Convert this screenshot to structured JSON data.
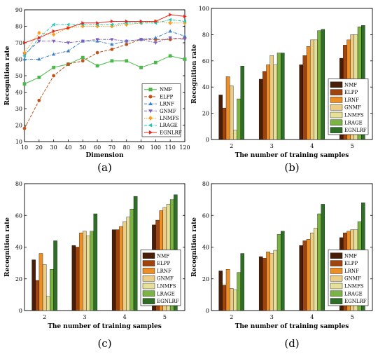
{
  "chart_data": [
    {
      "panel": "(a)",
      "type": "line",
      "xlabel": "Dimension",
      "ylabel": "Recognition rate",
      "xlim": [
        10,
        120
      ],
      "ylim": [
        10,
        90
      ],
      "xticks": [
        10,
        20,
        30,
        40,
        50,
        60,
        70,
        80,
        90,
        100,
        110,
        120
      ],
      "yticks": [
        10,
        20,
        30,
        40,
        50,
        60,
        70,
        80,
        90
      ],
      "x": [
        10,
        20,
        30,
        40,
        50,
        60,
        70,
        80,
        90,
        100,
        110,
        120
      ],
      "legend_position": "bottom-right",
      "series": [
        {
          "name": "NMF",
          "color": "#4cb84c",
          "marker": "square",
          "dash": "solid",
          "values": [
            45,
            49,
            55,
            57,
            61,
            56,
            59,
            59,
            55,
            58,
            62,
            60
          ]
        },
        {
          "name": "ELPP",
          "color": "#c0531c",
          "marker": "circle",
          "dash": "dashed",
          "values": [
            18,
            35,
            50,
            57,
            59,
            64,
            66,
            69,
            72,
            72,
            72,
            73
          ]
        },
        {
          "name": "LRNF",
          "color": "#3c7fc4",
          "marker": "triangle",
          "dash": "dashdot",
          "values": [
            60,
            60,
            63,
            65,
            71,
            71,
            69,
            71,
            72,
            73,
            77,
            74
          ]
        },
        {
          "name": "GNMF",
          "color": "#7f5fbf",
          "marker": "tri-down",
          "dash": "dashdot",
          "values": [
            63,
            71,
            71,
            70,
            71,
            72,
            72,
            71,
            72,
            70,
            73,
            72
          ]
        },
        {
          "name": "LNMFS",
          "color": "#ff9d1c",
          "marker": "diamond",
          "dash": "dotted",
          "values": [
            64,
            76,
            75,
            79,
            80,
            80,
            80,
            81,
            82,
            83,
            82,
            82
          ]
        },
        {
          "name": "LRAGE",
          "color": "#26c6b0",
          "marker": "tri-left",
          "dash": "dashdot",
          "values": [
            62,
            73,
            81,
            81,
            81,
            81,
            81,
            82,
            82,
            82,
            84,
            83
          ]
        },
        {
          "name": "EGNLRF",
          "color": "#e8281e",
          "marker": "arrow",
          "dash": "solid",
          "values": [
            70,
            73,
            77,
            79,
            82,
            82,
            83,
            83,
            83,
            83,
            87,
            86
          ]
        }
      ]
    },
    {
      "panel": "(b)",
      "type": "bar",
      "xlabel": "The number of training samples",
      "ylabel": "Recognition rate",
      "ylim": [
        0,
        100
      ],
      "yticks": [
        0,
        20,
        40,
        60,
        80,
        100
      ],
      "categories": [
        "2",
        "3",
        "4",
        "5"
      ],
      "legend_position": "bottom-right",
      "series": [
        {
          "name": "NMF",
          "color": "#4a1e06",
          "values": [
            34,
            46,
            57,
            62
          ]
        },
        {
          "name": "ELPP",
          "color": "#a0440c",
          "values": [
            24,
            52,
            64,
            72
          ]
        },
        {
          "name": "LRNF",
          "color": "#ec8e26",
          "values": [
            48,
            57,
            71,
            76
          ]
        },
        {
          "name": "GNMF",
          "color": "#eccd86",
          "values": [
            41,
            64,
            76,
            80
          ]
        },
        {
          "name": "LNMFS",
          "color": "#e6e09a",
          "values": [
            7,
            57,
            76,
            80
          ]
        },
        {
          "name": "LRAGE",
          "color": "#7cb444",
          "values": [
            31,
            66,
            83,
            86
          ]
        },
        {
          "name": "EGNLRF",
          "color": "#2f6e26",
          "values": [
            56,
            66,
            84,
            87
          ]
        }
      ]
    },
    {
      "panel": "(c)",
      "type": "bar",
      "xlabel": "The number of training samples",
      "ylabel": "Recognition rate",
      "ylim": [
        0,
        80
      ],
      "yticks": [
        0,
        20,
        40,
        60,
        80
      ],
      "categories": [
        "2",
        "3",
        "4",
        "5"
      ],
      "legend_position": "bottom-right",
      "series": [
        {
          "name": "NMF",
          "color": "#4a1e06",
          "values": [
            32,
            41,
            51,
            54
          ]
        },
        {
          "name": "ELPP",
          "color": "#a0440c",
          "values": [
            19,
            40,
            51,
            57
          ]
        },
        {
          "name": "LRNF",
          "color": "#ec8e26",
          "values": [
            36,
            49,
            53,
            63
          ]
        },
        {
          "name": "GNMF",
          "color": "#eccd86",
          "values": [
            29,
            50,
            56,
            65
          ]
        },
        {
          "name": "LNMFS",
          "color": "#e6e09a",
          "values": [
            9,
            47,
            59,
            67
          ]
        },
        {
          "name": "LRAGE",
          "color": "#7cb444",
          "values": [
            26,
            50,
            64,
            70
          ]
        },
        {
          "name": "EGNLRF",
          "color": "#2f6e26",
          "values": [
            44,
            61,
            72,
            73
          ]
        }
      ]
    },
    {
      "panel": "(d)",
      "type": "bar",
      "xlabel": "The number of training samples",
      "ylabel": "Recognition rate",
      "ylim": [
        0,
        80
      ],
      "yticks": [
        0,
        20,
        40,
        60,
        80
      ],
      "categories": [
        "2",
        "3",
        "4",
        "5"
      ],
      "legend_position": "bottom-right",
      "series": [
        {
          "name": "NMF",
          "color": "#4a1e06",
          "values": [
            25,
            34,
            41,
            46
          ]
        },
        {
          "name": "ELPP",
          "color": "#a0440c",
          "values": [
            16,
            33,
            44,
            49
          ]
        },
        {
          "name": "LRNF",
          "color": "#ec8e26",
          "values": [
            26,
            37,
            45,
            50
          ]
        },
        {
          "name": "GNMF",
          "color": "#eccd86",
          "values": [
            14,
            36,
            49,
            51
          ]
        },
        {
          "name": "LNMFS",
          "color": "#e6e09a",
          "values": [
            13,
            38,
            52,
            51
          ]
        },
        {
          "name": "LRAGE",
          "color": "#7cb444",
          "values": [
            24,
            48,
            61,
            56
          ]
        },
        {
          "name": "EGNLRF",
          "color": "#2f6e26",
          "values": [
            36,
            50,
            67,
            68
          ]
        }
      ]
    }
  ]
}
